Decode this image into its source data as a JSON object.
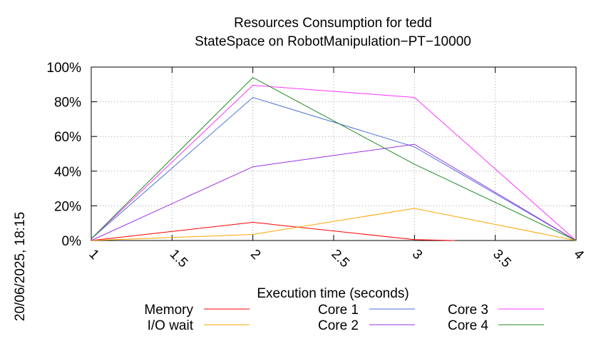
{
  "chart_data": {
    "type": "line",
    "title": [
      "Resources Consumption for tedd",
      "StateSpace on RobotManipulation−PT−10000"
    ],
    "xlabel": "Execution time (seconds)",
    "ylabel": "",
    "xlim": [
      1,
      4
    ],
    "ylim": [
      0,
      100
    ],
    "x_ticks": [
      "1",
      "1.5",
      "2",
      "2.5",
      "3",
      "3.5",
      "4"
    ],
    "y_ticks": [
      "0%",
      "20%",
      "40%",
      "60%",
      "80%",
      "100%"
    ],
    "grid": true,
    "legend_position": "bottom",
    "timestamp": "20/06/2025, 18:15",
    "series": [
      {
        "name": "Memory",
        "color": "#ff0000",
        "x": [
          1,
          2,
          3,
          3.25
        ],
        "values": [
          0,
          10.5,
          0.5,
          0
        ]
      },
      {
        "name": "I/O wait",
        "color": "#ffa500",
        "x": [
          1,
          2,
          3,
          4
        ],
        "values": [
          0,
          3.5,
          18.5,
          0
        ]
      },
      {
        "name": "Core 1",
        "color": "#4a72d6",
        "x": [
          1,
          2,
          3,
          4
        ],
        "values": [
          1,
          82.5,
          54,
          0
        ]
      },
      {
        "name": "Core 2",
        "color": "#9b30e6",
        "x": [
          1,
          2,
          3,
          4
        ],
        "values": [
          0,
          42.5,
          55.5,
          0
        ]
      },
      {
        "name": "Core 3",
        "color": "#ff33ff",
        "x": [
          1,
          2,
          3,
          4
        ],
        "values": [
          1,
          89.5,
          82.5,
          0
        ]
      },
      {
        "name": "Core 4",
        "color": "#228b22",
        "x": [
          1,
          2,
          3,
          4
        ],
        "values": [
          1,
          94,
          44,
          0
        ]
      }
    ]
  }
}
